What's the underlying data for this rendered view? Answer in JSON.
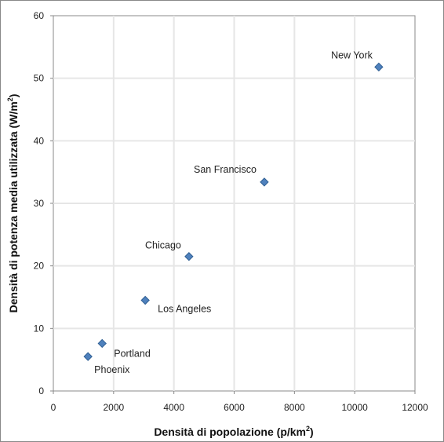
{
  "chart_data": {
    "type": "scatter",
    "xlabel": "Densità di popolazione (p/km",
    "xlabel_sup": "2",
    "xlabel_end": ")",
    "ylabel": "Densità di potenza media utilizzata (W/m",
    "ylabel_sup": "2",
    "ylabel_end": ")",
    "xlim": [
      0,
      12000
    ],
    "ylim": [
      0,
      60
    ],
    "x_ticks": [
      0,
      2000,
      4000,
      6000,
      8000,
      10000,
      12000
    ],
    "y_ticks": [
      0,
      10,
      20,
      30,
      40,
      50,
      60
    ],
    "x_tick_labels": [
      "0",
      "2000",
      "4000",
      "6000",
      "8000",
      "10000",
      "12000"
    ],
    "y_tick_labels": [
      "0",
      "10",
      "20",
      "30",
      "40",
      "50",
      "60"
    ],
    "grid": true,
    "marker": "diamond",
    "marker_color": "#4F81BD",
    "points": [
      {
        "label": "Phoenix",
        "x": 1150,
        "y": 5.5
      },
      {
        "label": "Portland",
        "x": 1620,
        "y": 7.6
      },
      {
        "label": "Los Angeles",
        "x": 3050,
        "y": 14.5
      },
      {
        "label": "Chicago",
        "x": 4500,
        "y": 21.5
      },
      {
        "label": "San Francisco",
        "x": 7000,
        "y": 33.4
      },
      {
        "label": "New York",
        "x": 10800,
        "y": 51.8
      }
    ]
  }
}
